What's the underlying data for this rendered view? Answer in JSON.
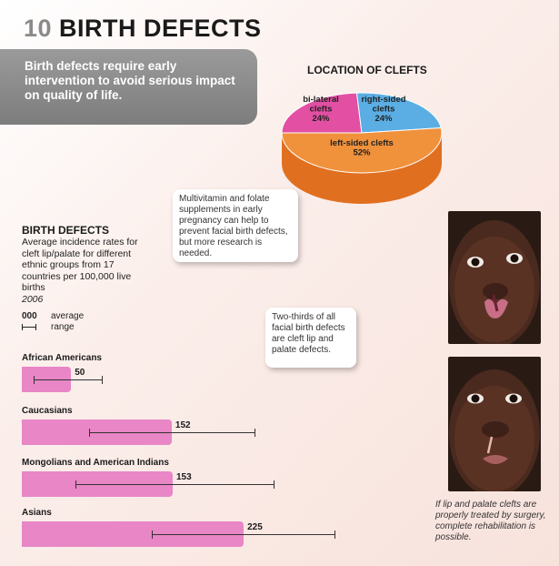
{
  "header": {
    "number": "10",
    "title": "BIRTH DEFECTS"
  },
  "intro": {
    "text": "Birth defects require early intervention to avoid serious impact on quality of life."
  },
  "notes": {
    "supplements": "Multivitamin and folate supplements in early pregnancy can help to prevent facial birth defects, but more research is needed.",
    "cleft_share": "Two-thirds of all facial birth defects are cleft lip and palate defects."
  },
  "legend": {
    "value_key": "000",
    "average_label": "average",
    "range_label": "range"
  },
  "photo_caption": "If lip and palate clefts are properly treated by surgery, complete rehabilitation is possible.",
  "colors": {
    "bar": "#e886c6",
    "pie_bilateral": "#e24fa3",
    "pie_right": "#5aaee4",
    "pie_left": "#f0913c"
  },
  "chart_data": [
    {
      "type": "pie",
      "title": "LOCATION OF CLEFTS",
      "slices": [
        {
          "label": "bi-lateral clefts",
          "value": 24,
          "value_label": "24%"
        },
        {
          "label": "right-sided clefts",
          "value": 24,
          "value_label": "24%"
        },
        {
          "label": "left-sided clefts",
          "value": 52,
          "value_label": "52%"
        }
      ]
    },
    {
      "type": "bar",
      "title": "BIRTH DEFECTS",
      "subtitle": "Average incidence rates for cleft lip/palate for different ethnic groups from 17 countries per 100,000 live births",
      "year": "2006",
      "categories": [
        "African Americans",
        "Caucasians",
        "Mongolians and American Indians",
        "Asians"
      ],
      "values": [
        50,
        152,
        153,
        225
      ],
      "range_low": [
        12,
        68,
        54,
        132
      ],
      "range_high": [
        82,
        237,
        256,
        318
      ],
      "xlim": [
        0,
        325
      ]
    }
  ]
}
